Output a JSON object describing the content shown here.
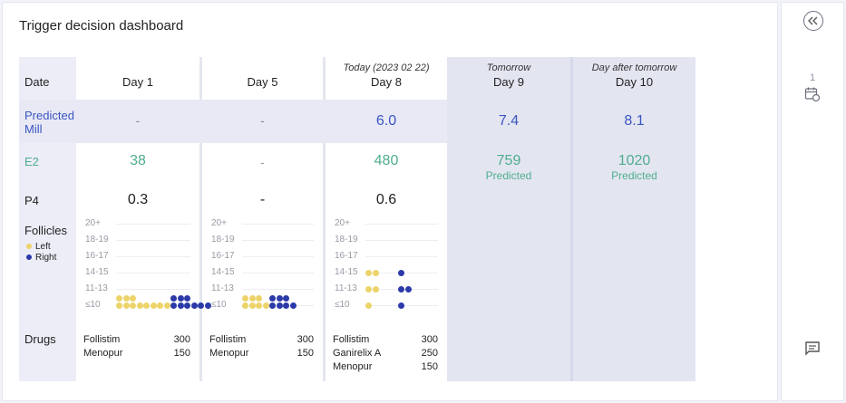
{
  "title": "Trigger decision dashboard",
  "row_labels": {
    "date": "Date",
    "predicted_mill": "Predicted Mill",
    "e2": "E2",
    "p4": "P4",
    "follicles": "Follicles",
    "drugs": "Drugs"
  },
  "legend": {
    "left": "Left",
    "right": "Right",
    "left_color": "#ecd46a",
    "right_color": "#2b3aa8"
  },
  "days": [
    {
      "top": "",
      "name": "Day 1",
      "pred": "-",
      "e2": "38",
      "e2_sub": "",
      "p4": "0.3",
      "follicles": [
        {
          "row": 0,
          "left": 3,
          "right": 3
        },
        {
          "row": 0,
          "left": 8,
          "right": 6
        }
      ],
      "drugs": [
        {
          "name": "Follistim",
          "dose": "300"
        },
        {
          "name": "Menopur",
          "dose": "150"
        }
      ]
    },
    {
      "top": "",
      "name": "Day 5",
      "pred": "-",
      "e2": "-",
      "e2_sub": "",
      "p4": "-",
      "drugs": [
        {
          "name": "Follistim",
          "dose": "300"
        },
        {
          "name": "Menopur",
          "dose": "150"
        }
      ]
    },
    {
      "top": "Today (2023 02 22)",
      "name": "Day 8",
      "pred": "6.0",
      "e2": "480",
      "e2_sub": "",
      "p4": "0.6",
      "drugs": [
        {
          "name": "Follistim",
          "dose": "300"
        },
        {
          "name": "Ganirelix A",
          "dose": "250"
        },
        {
          "name": "Menopur",
          "dose": "150"
        }
      ]
    },
    {
      "top": "Tomorrow",
      "name": "Day 9",
      "pred": "7.4",
      "e2": "759",
      "e2_sub": "Predicted",
      "p4": ""
    },
    {
      "top": "Day after tomorrow",
      "name": "Day 10",
      "pred": "8.1",
      "e2": "1020",
      "e2_sub": "Predicted",
      "p4": ""
    }
  ],
  "follicle_axis": [
    "20+",
    "18-19",
    "16-17",
    "14-15",
    "11-13",
    "≤10"
  ],
  "follicle_counts": [
    {
      "bins": {
        "20+": [
          0,
          0
        ],
        "18-19": [
          0,
          0
        ],
        "16-17": [
          0,
          0
        ],
        "14-15": [
          0,
          0
        ],
        "11-13": [
          0,
          0
        ],
        "≤10": [
          11,
          9
        ]
      }
    },
    {
      "bins": {
        "20+": [
          0,
          0
        ],
        "18-19": [
          0,
          0
        ],
        "16-17": [
          0,
          0
        ],
        "14-15": [
          0,
          0
        ],
        "11-13": [
          0,
          0
        ],
        "≤10": [
          7,
          7
        ]
      }
    },
    {
      "bins": {
        "20+": [
          0,
          0
        ],
        "18-19": [
          0,
          0
        ],
        "16-17": [
          0,
          0
        ],
        "14-15": [
          2,
          1
        ],
        "11-13": [
          2,
          2
        ],
        "≤10": [
          1,
          1
        ]
      }
    }
  ],
  "rail": {
    "collapse_icon": "chevron-double-left-icon",
    "calendar_count": "1",
    "calendar_icon": "calendar-clock-icon",
    "comment_icon": "comment-icon"
  }
}
